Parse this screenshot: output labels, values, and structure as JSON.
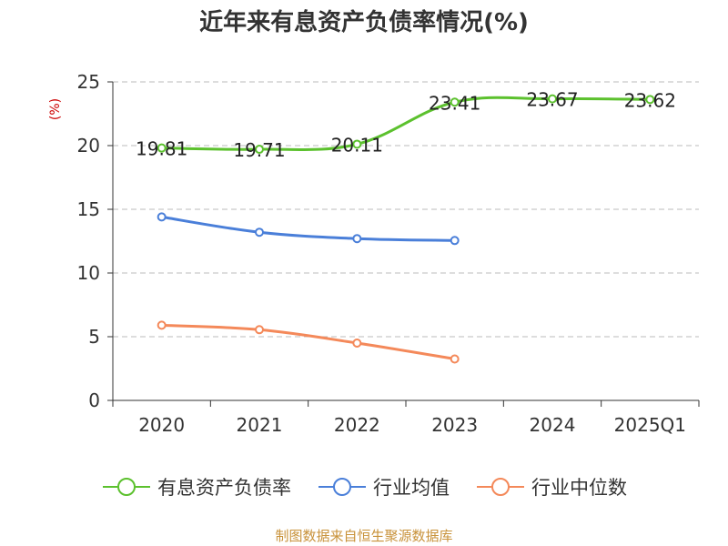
{
  "chart_data": {
    "type": "line",
    "title": "近年来有息资产负债率情况(%)",
    "ylabel": "(%)",
    "xlabel": "",
    "categories": [
      "2020",
      "2021",
      "2022",
      "2023",
      "2024",
      "2025Q1"
    ],
    "ylim": [
      0,
      25
    ],
    "yticks": [
      0,
      5,
      10,
      15,
      20,
      25
    ],
    "grid": true,
    "legend_position": "bottom",
    "series": [
      {
        "name": "有息资产负债率",
        "color": "#5cc12e",
        "values": [
          19.81,
          19.71,
          20.11,
          23.41,
          23.67,
          23.62
        ],
        "labels": [
          "19.81",
          "19.71",
          "20.11",
          "23.41",
          "23.67",
          "23.62"
        ]
      },
      {
        "name": "行业均值",
        "color": "#4a7fd9",
        "values": [
          14.4,
          13.2,
          12.7,
          12.55,
          null,
          null
        ]
      },
      {
        "name": "行业中位数",
        "color": "#f4895a",
        "values": [
          5.9,
          5.55,
          4.5,
          3.25,
          null,
          null
        ]
      }
    ]
  },
  "footer": {
    "source": "制图数据来自恒生聚源数据库"
  }
}
